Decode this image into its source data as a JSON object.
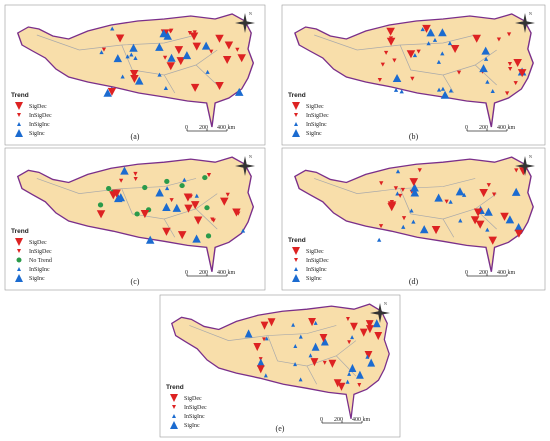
{
  "panels": [
    {
      "label": "(a)",
      "legend_title": "Trend",
      "legend": [
        "SigDec",
        "InSigDec",
        "InSigInc",
        "SigInc"
      ],
      "scale": [
        "0",
        "200",
        "400 km"
      ],
      "north": "N"
    },
    {
      "label": "(b)",
      "legend_title": "Trend",
      "legend": [
        "SigDec",
        "InSigDec",
        "InSigInc",
        "SigInc"
      ],
      "scale": [
        "0",
        "200",
        "400 km"
      ],
      "north": "N"
    },
    {
      "label": "(c)",
      "legend_title": "Trend",
      "legend": [
        "SigDec",
        "InSigDec",
        "No Trend",
        "InSigInc",
        "SigInc"
      ],
      "scale": [
        "0",
        "200",
        "400 km"
      ],
      "north": "N"
    },
    {
      "label": "(d)",
      "legend_title": "Trend",
      "legend": [
        "SigDec",
        "InSigDec",
        "InSigInc",
        "SigInc"
      ],
      "scale": [
        "0",
        "200",
        "400 km"
      ],
      "north": "N"
    },
    {
      "label": "(e)",
      "legend_title": "Trend",
      "legend": [
        "SigDec",
        "InSigDec",
        "InSigInc",
        "SigInc"
      ],
      "scale": [
        "0",
        "200",
        "400 km"
      ],
      "north": "N"
    }
  ]
}
